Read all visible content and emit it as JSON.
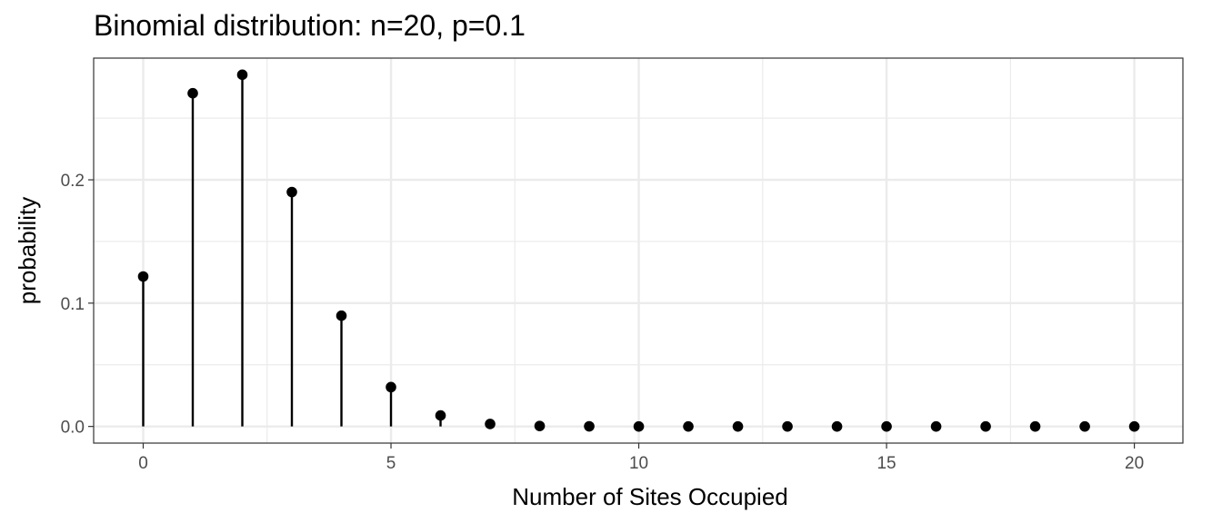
{
  "chart_data": {
    "type": "scatter",
    "title": "Binomial distribution: n=20, p=0.1",
    "xlabel": "Number of Sites Occupied",
    "ylabel": "probability",
    "x": [
      0,
      1,
      2,
      3,
      4,
      5,
      6,
      7,
      8,
      9,
      10,
      11,
      12,
      13,
      14,
      15,
      16,
      17,
      18,
      19,
      20
    ],
    "y": [
      0.1216,
      0.2702,
      0.2852,
      0.1901,
      0.0898,
      0.0319,
      0.0089,
      0.002,
      0.0004,
      0.0001,
      0,
      0,
      0,
      0,
      0,
      0,
      0,
      0,
      0,
      0,
      0
    ],
    "xlim": [
      -1,
      20.98
    ],
    "ylim": [
      -0.0135,
      0.2987
    ],
    "xticks": [
      0,
      5,
      10,
      15,
      20
    ],
    "xtick_labels": [
      "0",
      "5",
      "10",
      "15",
      "20"
    ],
    "yticks": [
      0,
      0.1,
      0.2
    ],
    "ytick_labels": [
      "0.0",
      "0.1",
      "0.2"
    ],
    "grid": true,
    "legend": "none",
    "colors": {
      "points": "#000000",
      "stems": "#000000",
      "grid": "#ebebeb",
      "panel_border": "#333333"
    }
  }
}
